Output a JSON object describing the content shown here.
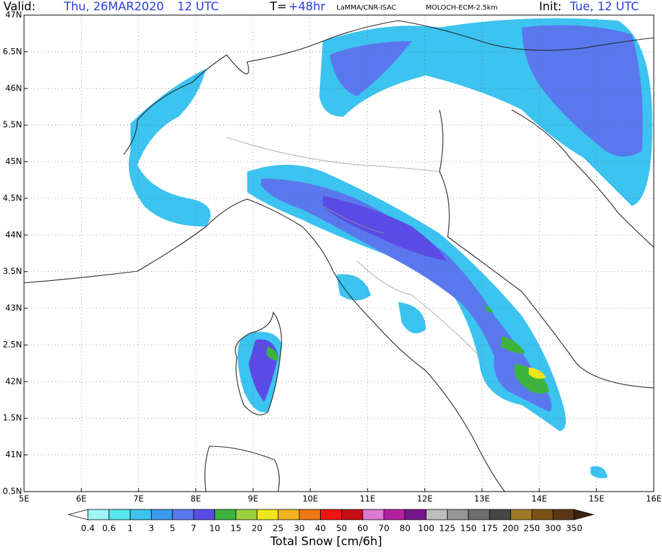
{
  "header": {
    "valid_label": "Valid:",
    "valid_date": "Thu, 26MAR2020",
    "valid_time": "12 UTC",
    "lead_label": "T=",
    "lead_value": "+48hr",
    "source": "LaMMA/CNR-ISAC",
    "model": "MOLOCH-ECM-2.5km",
    "init_label": "Init:",
    "init_value": "Tue, 12 UTC"
  },
  "map": {
    "lat_labels": [
      "47N",
      "6.5N",
      "46N",
      "5.5N",
      "45N",
      "4.5N",
      "44N",
      "3.5N",
      "43N",
      "2.5N",
      "42N",
      "1.5N",
      "41N",
      "0.5N"
    ],
    "lon_labels": [
      "5E",
      "6E",
      "7E",
      "8E",
      "9E",
      "10E",
      "11E",
      "12E",
      "13E",
      "14E",
      "15E",
      "16E"
    ]
  },
  "colorbar": {
    "title": "Total Snow [cm/6h]",
    "levels": [
      0.4,
      0.6,
      1,
      3,
      5,
      7,
      10,
      15,
      20,
      25,
      30,
      40,
      50,
      60,
      70,
      80,
      100,
      125,
      150,
      175,
      200,
      250,
      300,
      350
    ],
    "colors": [
      "#ffffff",
      "#a0f5f5",
      "#55e6ee",
      "#3cc3f0",
      "#3c9bf0",
      "#5a78ee",
      "#5a4be6",
      "#3cb43c",
      "#9bd23c",
      "#f0e61e",
      "#f0b41e",
      "#f07814",
      "#f01414",
      "#c80f14",
      "#dc78d2",
      "#b41ea0",
      "#78148c",
      "#bebebe",
      "#969696",
      "#6e6e6e",
      "#464646",
      "#a07828",
      "#7d5014",
      "#5a3714",
      "#3c2310"
    ]
  }
}
